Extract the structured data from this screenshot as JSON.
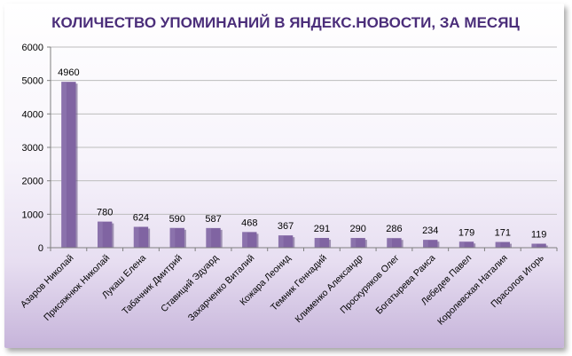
{
  "chart_data": {
    "type": "bar",
    "title": "КОЛИЧЕСТВО УПОМИНАНИЙ В ЯНДЕКС.НОВОСТИ, ЗА МЕСЯЦ",
    "categories": [
      "Азаров Николай",
      "Присяжнюк Николай",
      "Лукаш Елена",
      "Табачник Дмитрий",
      "Ставиций Эдуард",
      "Захарченко Виталий",
      "Кожара Леонид",
      "Темник Геннадий",
      "Клименко Александр",
      "Проскуряков Олег",
      "Богатырева Раиса",
      "Лебедев Павел",
      "Королевская Наталия",
      "Прасолов Игорь"
    ],
    "values": [
      4960,
      780,
      624,
      590,
      587,
      468,
      367,
      291,
      290,
      286,
      234,
      179,
      171,
      119
    ],
    "data_labels": [
      "4960",
      "780",
      "624",
      "590",
      "587",
      "468",
      "367",
      "291",
      "290",
      "286",
      "234",
      "179",
      "171",
      "119"
    ],
    "y_ticks": [
      "0",
      "1000",
      "2000",
      "3000",
      "4000",
      "5000",
      "6000"
    ],
    "ylim": [
      0,
      6000
    ],
    "grid": true,
    "legend": "none",
    "colors": {
      "bar": "#8064a2",
      "bar_dark": "#5f4a7c",
      "bar_light": "#9a82b8",
      "title": "#4b2e7a",
      "grid": "#bdbdbd"
    }
  }
}
